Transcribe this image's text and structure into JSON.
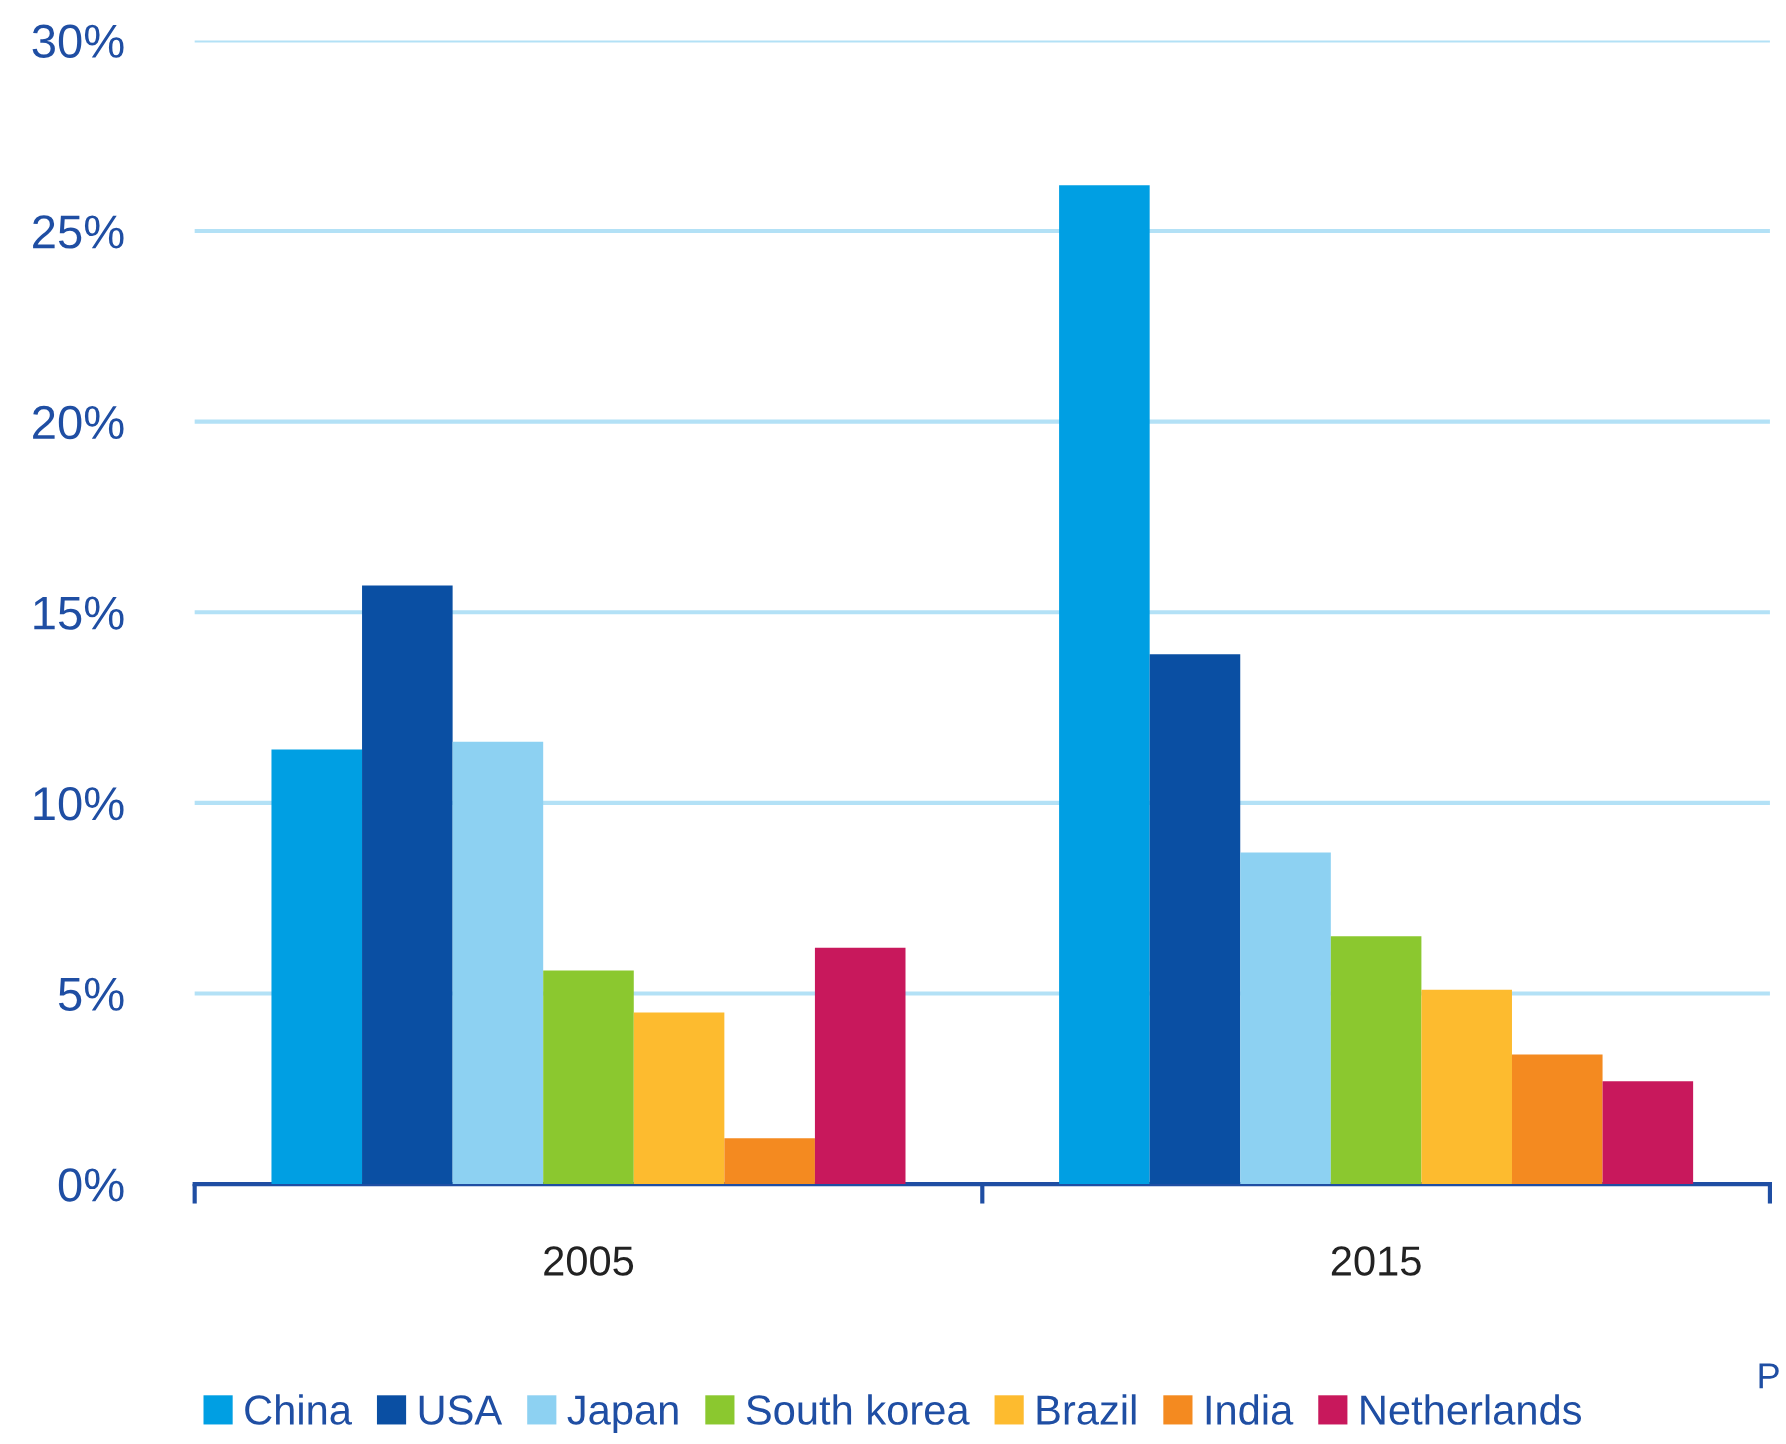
{
  "chart_data": {
    "type": "bar",
    "categories": [
      "2005",
      "2015"
    ],
    "series": [
      {
        "name": "China",
        "color": "#009fe3",
        "values": [
          11.4,
          26.2
        ]
      },
      {
        "name": "USA",
        "color": "#0a4fa3",
        "values": [
          15.7,
          13.9
        ]
      },
      {
        "name": "Japan",
        "color": "#8dd1f2",
        "values": [
          11.6,
          8.7
        ]
      },
      {
        "name": "South korea",
        "color": "#8bc82f",
        "values": [
          5.6,
          6.5
        ]
      },
      {
        "name": "Brazil",
        "color": "#fdbb2f",
        "values": [
          4.5,
          5.1
        ]
      },
      {
        "name": "India",
        "color": "#f48a20",
        "values": [
          1.2,
          3.4
        ]
      },
      {
        "name": "Netherlands",
        "color": "#c8185c",
        "values": [
          6.2,
          2.7
        ]
      }
    ],
    "ylim": [
      0,
      30
    ],
    "yticks": [
      {
        "value": 0,
        "label": "0%"
      },
      {
        "value": 5,
        "label": "5%"
      },
      {
        "value": 10,
        "label": "10%"
      },
      {
        "value": 15,
        "label": "15%"
      },
      {
        "value": 20,
        "label": "20%"
      },
      {
        "value": 25,
        "label": "25%"
      },
      {
        "value": 30,
        "label": "30%"
      }
    ],
    "grid": "y",
    "legend": "bottom",
    "annotations": [
      "P"
    ]
  }
}
